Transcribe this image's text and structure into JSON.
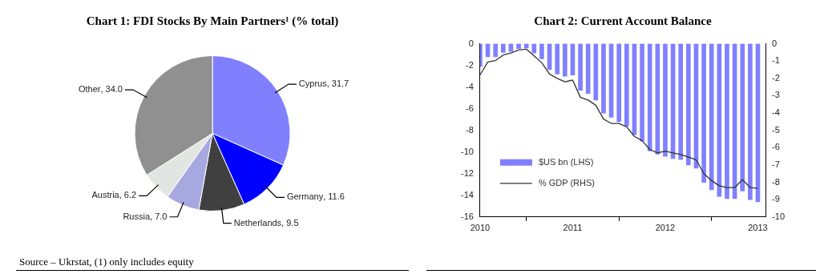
{
  "chart_data": [
    {
      "type": "pie",
      "title": "Chart 1: FDI Stocks By Main Partners¹ (% total)",
      "categories": [
        "Cyprus",
        "Germany",
        "Netherlands",
        "Russia",
        "Austria",
        "Other"
      ],
      "values": [
        31.7,
        11.6,
        9.5,
        7.0,
        6.2,
        34.0
      ],
      "colors": [
        "#8080ff",
        "#0000ff",
        "#404040",
        "#a8a8e0",
        "#e2e6e2",
        "#909090"
      ],
      "value_labels": [
        ", 31.7",
        ", 11.6",
        ", 9.5",
        ", 7.0",
        ", 6.2",
        ", 34.0"
      ],
      "legend": false,
      "annotations": [
        "Source – Ukrstat, (1) only includes equity"
      ]
    },
    {
      "type": "bar",
      "title": "Chart 2: Current Account Balance",
      "x": [
        "2010-01",
        "2010-02",
        "2010-03",
        "2010-04",
        "2010-05",
        "2010-06",
        "2010-07",
        "2010-08",
        "2010-09",
        "2010-10",
        "2010-11",
        "2010-12",
        "2011-01",
        "2011-02",
        "2011-03",
        "2011-04",
        "2011-05",
        "2011-06",
        "2011-07",
        "2011-08",
        "2011-09",
        "2011-10",
        "2011-11",
        "2011-12",
        "2012-01",
        "2012-02",
        "2012-03",
        "2012-04",
        "2012-05",
        "2012-06",
        "2012-07",
        "2012-08",
        "2012-09",
        "2012-10",
        "2012-11",
        "2012-12",
        "2013-01"
      ],
      "series": [
        {
          "name": "$US bn (LHS)",
          "type": "bar",
          "color": "#8080ff",
          "values": [
            -2.1,
            -1.2,
            -1.2,
            -0.8,
            -0.7,
            -0.45,
            -0.4,
            -0.85,
            -1.4,
            -2.4,
            -2.8,
            -3.0,
            -2.9,
            -4.3,
            -4.6,
            -5.2,
            -6.4,
            -6.8,
            -7.2,
            -7.6,
            -8.4,
            -9.0,
            -9.9,
            -10.2,
            -10.4,
            -10.6,
            -10.7,
            -11.2,
            -11.5,
            -12.8,
            -13.5,
            -14.1,
            -14.3,
            -14.3,
            -13.6,
            -14.4,
            -14.6
          ]
        },
        {
          "name": "% GDP (RHS)",
          "type": "line",
          "axis": "y2",
          "color": "#333333",
          "values": [
            -1.8,
            -1.05,
            -0.97,
            -0.65,
            -0.53,
            -0.36,
            -0.31,
            -0.7,
            -1.1,
            -1.75,
            -2.0,
            -2.2,
            -2.1,
            -3.1,
            -3.25,
            -3.55,
            -4.35,
            -4.6,
            -4.6,
            -4.8,
            -5.35,
            -5.6,
            -6.1,
            -6.3,
            -6.2,
            -6.3,
            -6.4,
            -6.55,
            -6.7,
            -7.5,
            -7.9,
            -8.2,
            -8.3,
            -8.3,
            -7.85,
            -8.3,
            -8.35
          ]
        }
      ],
      "xlim": [
        "2010-01",
        "2013-02"
      ],
      "xticks": [
        "2010",
        "2011",
        "2012",
        "2013"
      ],
      "ylim": [
        -16,
        0
      ],
      "yticks": [
        -16,
        -14,
        -12,
        -10,
        -8,
        -6,
        -4,
        -2,
        0
      ],
      "y2lim": [
        -10,
        0
      ],
      "y2ticks": [
        -10,
        -9,
        -8,
        -7,
        -6,
        -5,
        -4,
        -3,
        -2,
        -1,
        0
      ],
      "grid": false,
      "legend": "bottom left",
      "marker": "none",
      "line_style": "solid"
    }
  ]
}
